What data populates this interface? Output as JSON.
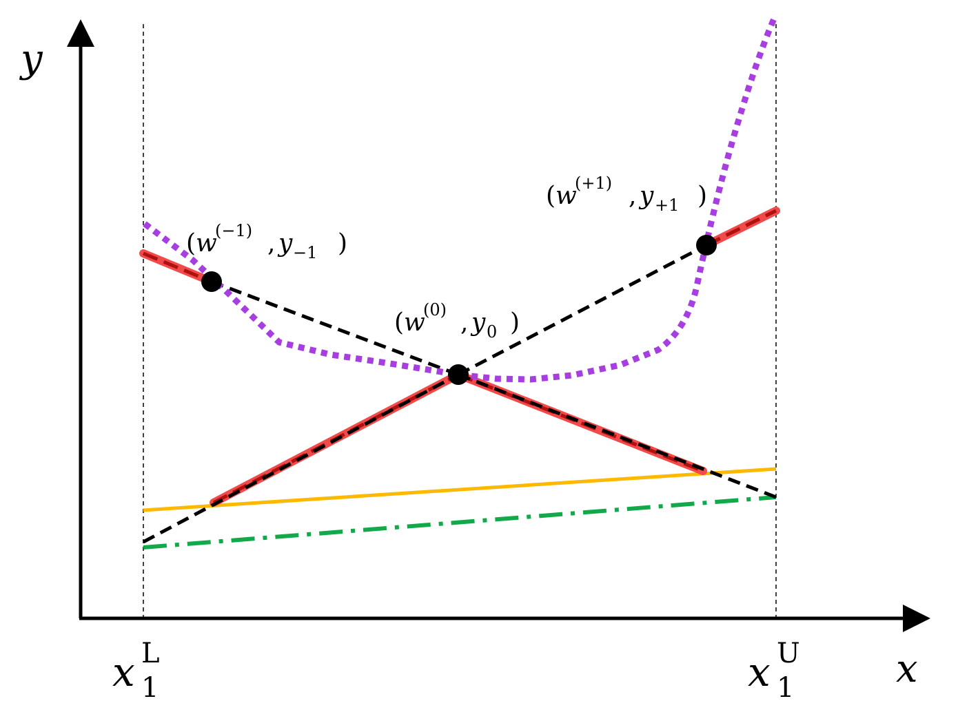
{
  "axes": {
    "x_label": "x",
    "y_label": "y"
  },
  "bounds": {
    "lower": {
      "base": "x",
      "sub": "1",
      "sup": "L"
    },
    "upper": {
      "base": "x",
      "sub": "1",
      "sup": "U"
    }
  },
  "points": {
    "minus": {
      "w_sup": "(−1)",
      "y_sub": "−1"
    },
    "zero": {
      "w_sup": "(0)",
      "y_sub": "0"
    },
    "plus": {
      "w_sup": "(+1)",
      "y_sub": "+1"
    }
  },
  "label_text": {
    "open_paren": "(",
    "w": "w",
    "comma": ",",
    "y": "y",
    "close_paren": ")"
  },
  "colors": {
    "axis": "#000000",
    "dashed_black": "#000000",
    "red_solid": "#f04a4a",
    "red_dashed": "#b01010",
    "purple_dotted": "#a73ee0",
    "orange": "#fdb800",
    "green_dashdot": "#12a94a"
  }
}
